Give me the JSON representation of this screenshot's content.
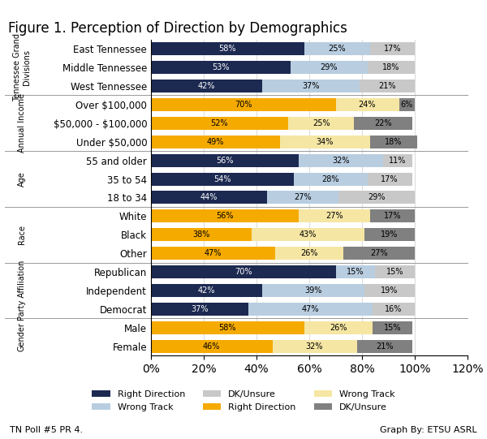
{
  "chart_data": {
    "type": "bar",
    "orientation": "horizontal",
    "stacked": true,
    "title": "Figure 1. Perception of Direction by Demographics",
    "annotations": [
      "TN Poll #5 PR 4.",
      "Graph By: ETSU ASRL"
    ],
    "categories": [
      "East Tennessee",
      "Middle Tennessee",
      "West Tennessee",
      "Over $100,000",
      "$50,000 - $100,000",
      "Under $50,000",
      "55 and older",
      "35 to 54",
      "18 to 34",
      "White",
      "Black",
      "Other",
      "Republican",
      "Independent",
      "Democrat",
      "Male",
      "Female"
    ],
    "groups": [
      {
        "label": "Tennessee Grand\nDivisions",
        "size": 3
      },
      {
        "label": "Annual Income",
        "size": 3
      },
      {
        "label": "Age",
        "size": 3
      },
      {
        "label": "Race",
        "size": 3
      },
      {
        "label": "Party Affiliation",
        "size": 3
      },
      {
        "label": "Gender",
        "size": 2
      }
    ],
    "series": [
      {
        "name": "Right Direction",
        "color": "#1c2951",
        "values": [
          58,
          53,
          42,
          null,
          null,
          null,
          56,
          54,
          44,
          null,
          null,
          null,
          70,
          42,
          37,
          null,
          null
        ],
        "value_labels": [
          "58%",
          "53%",
          "42%",
          null,
          null,
          null,
          "56%",
          "54%",
          "44%",
          null,
          null,
          null,
          "70%",
          "42%",
          "37%",
          null,
          null
        ]
      },
      {
        "name": "Wrong Track",
        "color": "#b8cde0",
        "values": [
          25,
          29,
          37,
          null,
          null,
          null,
          32,
          28,
          27,
          null,
          null,
          null,
          15,
          39,
          47,
          null,
          null
        ],
        "value_labels": [
          "25%",
          "29%",
          "37%",
          null,
          null,
          null,
          "32%",
          "28%",
          "27%",
          null,
          null,
          null,
          "15%",
          "39%",
          "47%",
          null,
          null
        ]
      },
      {
        "name": "DK/Unsure",
        "color": "#c8c8c8",
        "values": [
          17,
          18,
          21,
          null,
          null,
          null,
          11,
          17,
          29,
          null,
          null,
          null,
          15,
          19,
          16,
          null,
          null
        ],
        "value_labels": [
          "17%",
          "18%",
          "21%",
          null,
          null,
          null,
          "11%",
          "17%",
          "29%",
          null,
          null,
          null,
          "15%",
          "19%",
          "16%",
          null,
          null
        ]
      },
      {
        "name": "Right Direction",
        "color": "#f5aa00",
        "values": [
          null,
          null,
          null,
          70,
          52,
          49,
          null,
          null,
          null,
          56,
          38,
          47,
          null,
          null,
          null,
          58,
          46
        ],
        "value_labels": [
          null,
          null,
          null,
          "70%",
          "52%",
          "49%",
          null,
          null,
          null,
          "56%",
          "38%",
          "47%",
          null,
          null,
          null,
          "58%",
          "46%"
        ]
      },
      {
        "name": "Wrong Track",
        "color": "#f5e6a3",
        "values": [
          null,
          null,
          null,
          24,
          25,
          34,
          null,
          null,
          null,
          27,
          43,
          26,
          null,
          null,
          null,
          26,
          32
        ],
        "value_labels": [
          null,
          null,
          null,
          "24%",
          "25%",
          "34%",
          null,
          null,
          null,
          "27%",
          "43%",
          "26%",
          null,
          null,
          null,
          "26%",
          "32%"
        ]
      },
      {
        "name": "DK/Unsure",
        "color": "#808080",
        "values": [
          null,
          null,
          null,
          6,
          22,
          18,
          null,
          null,
          null,
          17,
          19,
          27,
          null,
          null,
          null,
          15,
          21
        ],
        "value_labels": [
          null,
          null,
          null,
          "6%",
          "22%",
          "18%",
          null,
          null,
          null,
          "17%",
          "19%",
          "27%",
          null,
          null,
          null,
          "15%",
          "21%"
        ]
      }
    ],
    "data_labels": true,
    "xlim": [
      0,
      120
    ],
    "xticks": [
      {
        "value": 0,
        "label": "0%"
      },
      {
        "value": 20,
        "label": "20%"
      },
      {
        "value": 40,
        "label": "40%"
      },
      {
        "value": 60,
        "label": "60%"
      },
      {
        "value": 80,
        "label": "80%"
      },
      {
        "value": 100,
        "label": "100%"
      },
      {
        "value": 120,
        "label": "120%"
      }
    ],
    "grid": true,
    "legend": "lower center"
  }
}
